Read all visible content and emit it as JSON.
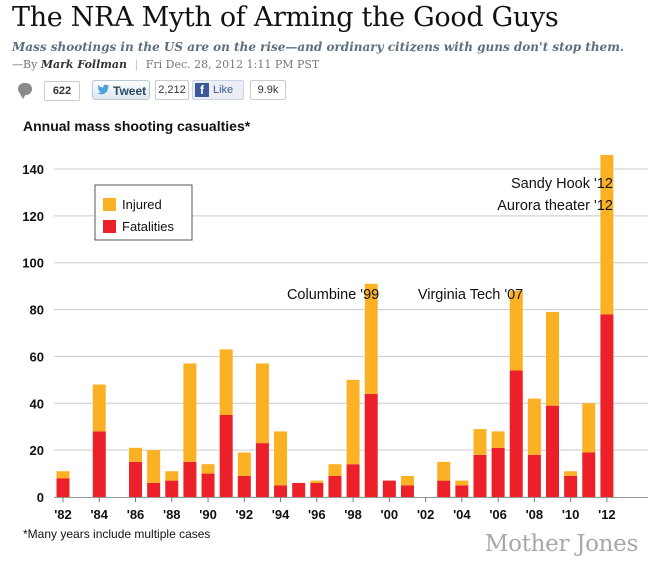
{
  "article": {
    "title": "The NRA Myth of Arming the Good Guys",
    "subtitle": "Mass shootings in the US are on the rise—and ordinary citizens with guns don't stop them.",
    "byline_prefix": "—By",
    "author": "Mark Follman",
    "separator": "|",
    "date": "Fri Dec. 28, 2012 1:11 PM PST"
  },
  "social": {
    "comment_count": "622",
    "tweet_label": "Tweet",
    "tweet_count": "2,212",
    "like_label": "Like",
    "like_count": "9.9k",
    "icons": {
      "comments": "comment-bubble-icon",
      "twitter": "twitter-bird-icon",
      "facebook": "facebook-f-icon"
    }
  },
  "footnote": "*Many years include multiple cases",
  "logo": "Mother Jones",
  "colors": {
    "injured": "#fbb124",
    "fatalities": "#ec2029",
    "grid": "#cccccc",
    "text": "#111111"
  },
  "chart_data": {
    "type": "bar",
    "stacked": true,
    "title": "Annual mass shooting casualties*",
    "xlabel": "",
    "ylabel": "",
    "ylim": [
      0,
      146
    ],
    "yticks": [
      0,
      20,
      40,
      60,
      80,
      100,
      120,
      140
    ],
    "grid": true,
    "legend_position": "top-left",
    "x": [
      1982,
      1983,
      1984,
      1985,
      1986,
      1987,
      1988,
      1989,
      1990,
      1991,
      1992,
      1993,
      1994,
      1995,
      1996,
      1997,
      1998,
      1999,
      2000,
      2001,
      2002,
      2003,
      2004,
      2005,
      2006,
      2007,
      2008,
      2009,
      2010,
      2011,
      2012
    ],
    "xtick_labels": [
      "'82",
      "'84",
      "'86",
      "'88",
      "'90",
      "'92",
      "'94",
      "'96",
      "'98",
      "'00",
      "'02",
      "'04",
      "'06",
      "'08",
      "'10",
      "'12"
    ],
    "series": [
      {
        "name": "Fatalities",
        "values": [
          8,
          0,
          28,
          0,
          15,
          6,
          7,
          15,
          10,
          35,
          9,
          23,
          5,
          6,
          6,
          9,
          14,
          44,
          7,
          5,
          0,
          7,
          5,
          18,
          21,
          54,
          18,
          39,
          9,
          19,
          78
        ]
      },
      {
        "name": "Injured",
        "values": [
          3,
          0,
          20,
          0,
          6,
          14,
          4,
          42,
          4,
          28,
          10,
          34,
          23,
          0,
          1,
          5,
          36,
          47,
          0,
          4,
          0,
          8,
          2,
          11,
          7,
          34,
          24,
          40,
          2,
          21,
          68
        ]
      }
    ],
    "annotations": [
      {
        "text": "Columbine '99",
        "x": 1999
      },
      {
        "text": "Virginia Tech '07",
        "x": 2007
      },
      {
        "text": "Sandy Hook '12",
        "x": 2012
      },
      {
        "text": "Aurora theater '12",
        "x": 2012
      }
    ]
  }
}
